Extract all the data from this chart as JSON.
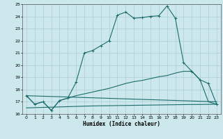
{
  "xlabel": "Humidex (Indice chaleur)",
  "background_color": "#cce8ec",
  "grid_color": "#aacdd4",
  "line_color": "#1a6b6b",
  "xlim": [
    -0.5,
    23.5
  ],
  "ylim": [
    16,
    25
  ],
  "xticks": [
    0,
    1,
    2,
    3,
    4,
    5,
    6,
    7,
    8,
    9,
    10,
    11,
    12,
    13,
    14,
    15,
    16,
    17,
    18,
    19,
    20,
    21,
    22,
    23
  ],
  "yticks": [
    16,
    17,
    18,
    19,
    20,
    21,
    22,
    23,
    24,
    25
  ],
  "line1_x": [
    0,
    1,
    2,
    3,
    4,
    5,
    6,
    7,
    8,
    9,
    10,
    11,
    12,
    13,
    14,
    15,
    16,
    17,
    18,
    19,
    20,
    21,
    22,
    23
  ],
  "line1_y": [
    17.5,
    16.8,
    17.0,
    16.3,
    17.1,
    17.3,
    18.6,
    21.0,
    21.2,
    21.6,
    22.0,
    24.1,
    24.35,
    23.85,
    23.9,
    24.0,
    24.05,
    24.85,
    23.85,
    20.2,
    19.5,
    18.8,
    18.5,
    16.8
  ],
  "line2_x": [
    0,
    1,
    2,
    3,
    4,
    5,
    6,
    7,
    8,
    9,
    10,
    11,
    12,
    13,
    14,
    15,
    16,
    17,
    18,
    19,
    20,
    21,
    22,
    23
  ],
  "line2_y": [
    17.5,
    16.8,
    17.0,
    16.3,
    17.1,
    17.3,
    17.5,
    17.65,
    17.8,
    17.95,
    18.1,
    18.3,
    18.5,
    18.65,
    18.75,
    18.9,
    19.05,
    19.15,
    19.35,
    19.5,
    19.5,
    18.8,
    17.0,
    16.8
  ],
  "line3_x": [
    0,
    1,
    2,
    3,
    4,
    5,
    6,
    7,
    8,
    9,
    10,
    11,
    12,
    13,
    14,
    15,
    16,
    17,
    18,
    19,
    20,
    21,
    22,
    23
  ],
  "line3_y": [
    16.5,
    16.52,
    16.54,
    16.56,
    16.58,
    16.6,
    16.62,
    16.64,
    16.66,
    16.67,
    16.68,
    16.69,
    16.7,
    16.71,
    16.72,
    16.73,
    16.74,
    16.75,
    16.76,
    16.77,
    16.78,
    16.78,
    16.79,
    16.8
  ],
  "line4_x": [
    0,
    23
  ],
  "line4_y": [
    17.5,
    17.0
  ]
}
